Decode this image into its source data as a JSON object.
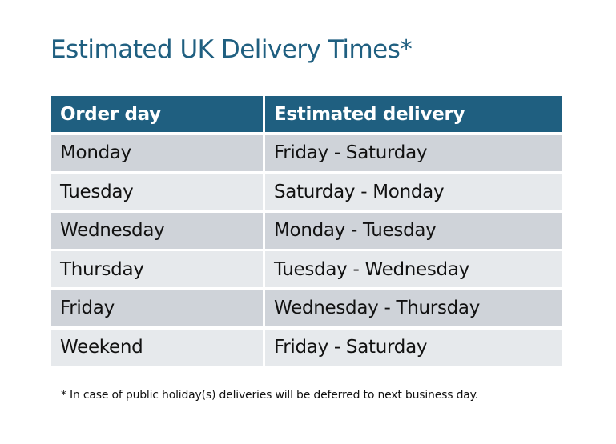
{
  "title": "Estimated UK Delivery Times*",
  "table": {
    "headers": [
      "Order day",
      "Estimated delivery"
    ],
    "rows": [
      [
        "Monday",
        "Friday - Saturday"
      ],
      [
        "Tuesday",
        "Saturday - Monday"
      ],
      [
        "Wednesday",
        "Monday - Tuesday"
      ],
      [
        "Thursday",
        "Tuesday - Wednesday"
      ],
      [
        "Friday",
        "Wednesday - Thursday"
      ],
      [
        "Weekend",
        "Friday - Saturday"
      ]
    ]
  },
  "footnote": "* In case of public holiday(s) deliveries will be deferred to next business day.",
  "colors": {
    "header": "#1f5f80",
    "row_dark": "#cfd3d9",
    "row_light": "#e6e9ec"
  }
}
